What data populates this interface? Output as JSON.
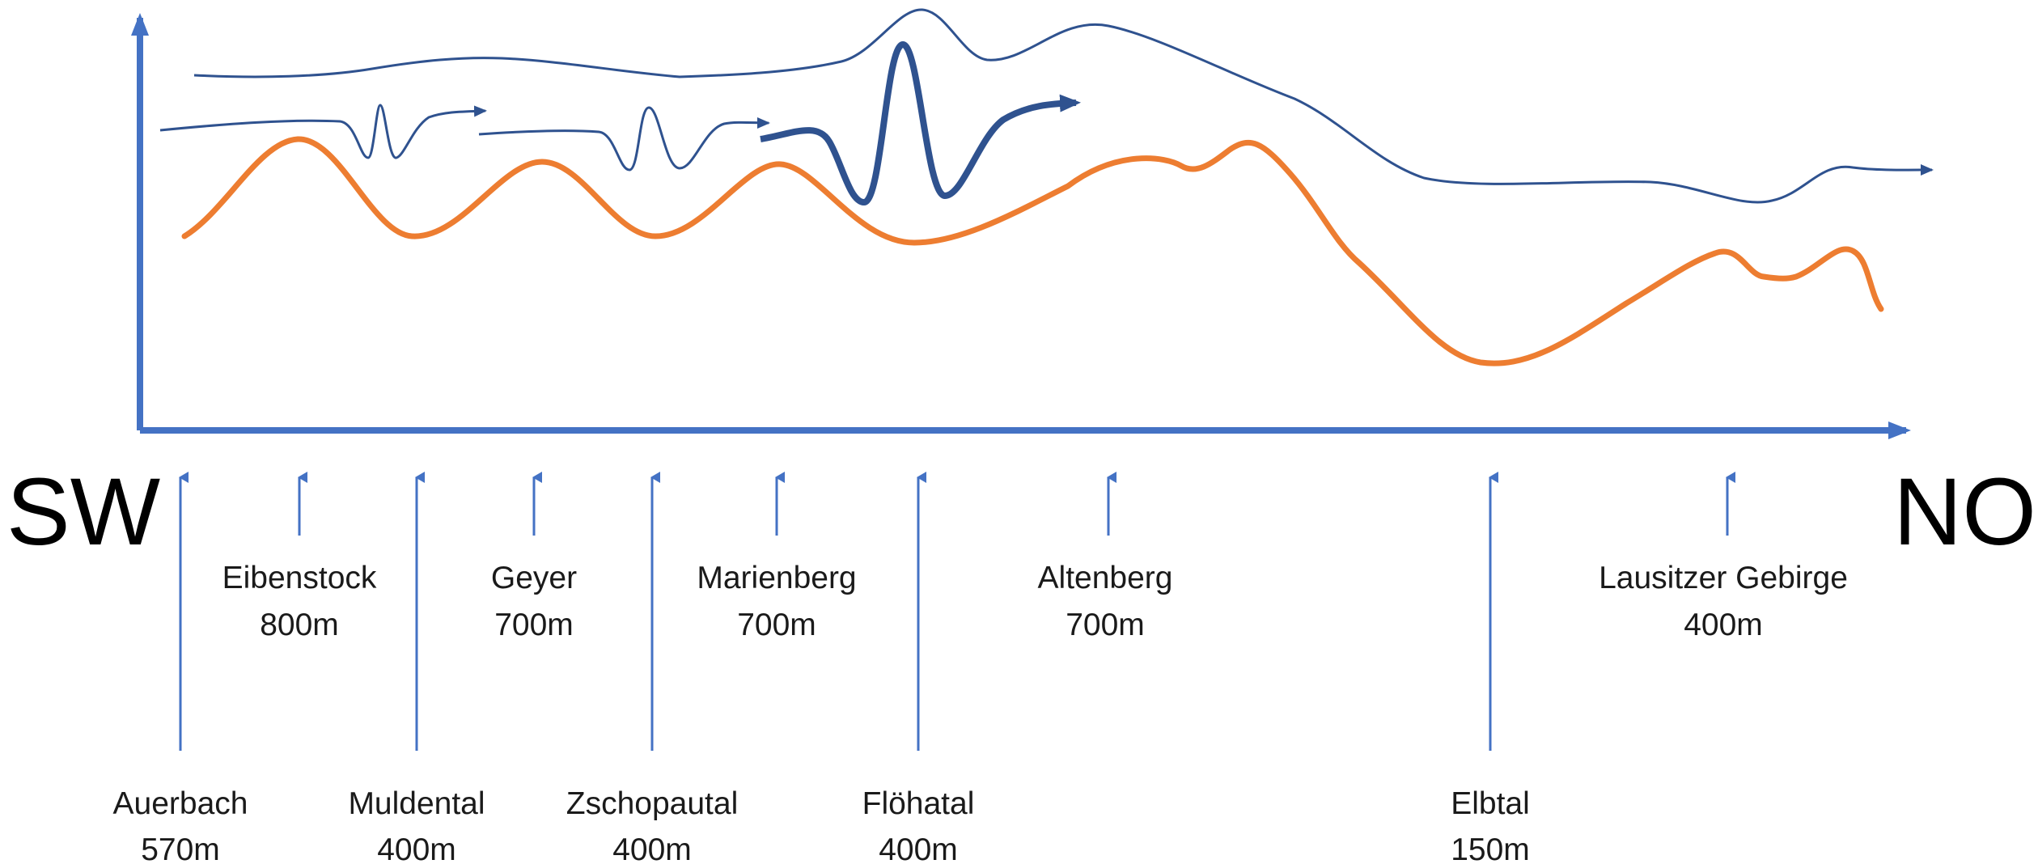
{
  "directions": {
    "start": "SW",
    "end": "NO"
  },
  "colors": {
    "axis": "#4472c4",
    "terrain": "#ed7d31",
    "wind": "#2f528f",
    "marker": "#4472c4"
  },
  "peaks": [
    {
      "name": "Eibenstock",
      "elevation": "800m"
    },
    {
      "name": "Geyer",
      "elevation": "700m"
    },
    {
      "name": "Marienberg",
      "elevation": "700m"
    },
    {
      "name": "Altenberg",
      "elevation": "700m"
    },
    {
      "name": "Lausitzer Gebirge",
      "elevation": "400m"
    }
  ],
  "valleys": [
    {
      "name": "Auerbach",
      "elevation": "570m"
    },
    {
      "name": "Muldental",
      "elevation": "400m"
    },
    {
      "name": "Zschopautal",
      "elevation": "400m"
    },
    {
      "name": "Flöhatal",
      "elevation": "400m"
    },
    {
      "name": "Elbtal",
      "elevation": "150m"
    }
  ]
}
